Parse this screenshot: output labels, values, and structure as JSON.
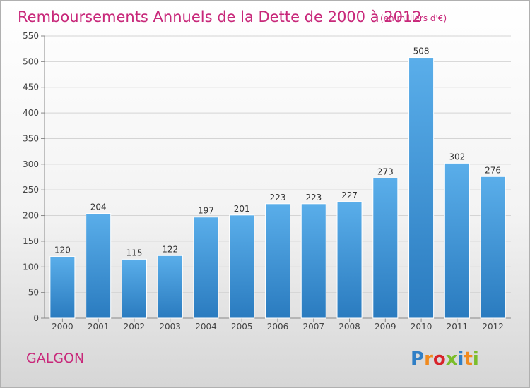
{
  "chart_data": {
    "type": "bar",
    "title": "Remboursements Annuels de la Dette de 2000 à 2012",
    "unit": "(en milliers d'€)",
    "categories": [
      "2000",
      "2001",
      "2002",
      "2003",
      "2004",
      "2005",
      "2006",
      "2007",
      "2008",
      "2009",
      "2010",
      "2011",
      "2012"
    ],
    "values": [
      120,
      204,
      115,
      122,
      197,
      201,
      223,
      223,
      227,
      273,
      508,
      302,
      276
    ],
    "ylim": [
      0,
      550
    ],
    "yticks": [
      0,
      50,
      100,
      150,
      200,
      250,
      300,
      350,
      400,
      450,
      500,
      550
    ],
    "grid": true,
    "bar_color": "#3a93d6"
  },
  "commune": "GALGON",
  "logo": {
    "text": "Proxiti",
    "letter_colors": [
      "#2f7fc6",
      "#f08a1e",
      "#d8232a",
      "#7bbd2a",
      "#2f7fc6",
      "#f08a1e",
      "#7bbd2a"
    ]
  }
}
